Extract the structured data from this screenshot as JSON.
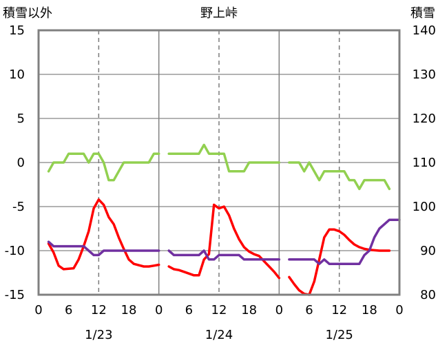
{
  "chart_data": {
    "type": "line",
    "title": "野上峠",
    "ylabel_left": "積雪以外",
    "ylabel_right": "積雪",
    "left_axis": {
      "min": -15,
      "max": 15,
      "step": 5
    },
    "right_axis": {
      "min": 80,
      "max": 140,
      "step": 10
    },
    "x_axis": {
      "hours_per_day": 24,
      "days": 3,
      "tick_labels": [
        "0",
        "6",
        "12",
        "18",
        "0",
        "6",
        "12",
        "18",
        "0",
        "6",
        "12",
        "18",
        "0"
      ]
    },
    "date_labels": [
      "1/23",
      "1/24",
      "1/25"
    ],
    "grid": {
      "horizontal": true,
      "vertical_dashed_at_hours": [
        12,
        36,
        60
      ],
      "day_separators": [
        24,
        48
      ]
    },
    "series": [
      {
        "key": "green",
        "axis": "left",
        "color": "#92d050",
        "days": [
          [
            [
              2,
              -1
            ],
            [
              3,
              0
            ],
            [
              5,
              0
            ],
            [
              6,
              1
            ],
            [
              9,
              1
            ],
            [
              10,
              0
            ],
            [
              11,
              1
            ],
            [
              12,
              1
            ],
            [
              13,
              0
            ],
            [
              14,
              -2
            ],
            [
              15,
              -2
            ],
            [
              16,
              -1
            ],
            [
              17,
              0
            ],
            [
              22,
              0
            ],
            [
              23,
              1
            ],
            [
              24,
              1
            ]
          ],
          [
            [
              26,
              1
            ],
            [
              32,
              1
            ],
            [
              33,
              2
            ],
            [
              34,
              1
            ],
            [
              37,
              1
            ],
            [
              38,
              -1
            ],
            [
              41,
              -1
            ],
            [
              42,
              0
            ],
            [
              48,
              0
            ]
          ],
          [
            [
              50,
              0
            ],
            [
              52,
              0
            ],
            [
              53,
              -1
            ],
            [
              54,
              0
            ],
            [
              56,
              -2
            ],
            [
              57,
              -1
            ],
            [
              61,
              -1
            ],
            [
              62,
              -2
            ],
            [
              63,
              -2
            ],
            [
              64,
              -3
            ],
            [
              65,
              -2
            ],
            [
              69,
              -2
            ],
            [
              70,
              -3
            ]
          ]
        ]
      },
      {
        "key": "red",
        "axis": "left",
        "color": "#ff0000",
        "days": [
          [
            [
              2,
              -9.2
            ],
            [
              3,
              -10.2
            ],
            [
              4,
              -11.7
            ],
            [
              5,
              -12.1
            ],
            [
              7,
              -12
            ],
            [
              8,
              -11
            ],
            [
              9,
              -9.5
            ],
            [
              10,
              -7.8
            ],
            [
              11,
              -5.2
            ],
            [
              12,
              -4.2
            ],
            [
              13,
              -4.8
            ],
            [
              14,
              -6.2
            ],
            [
              15,
              -7
            ],
            [
              16,
              -8.5
            ],
            [
              17,
              -9.8
            ],
            [
              18,
              -11
            ],
            [
              19,
              -11.5
            ],
            [
              21,
              -11.8
            ],
            [
              22,
              -11.8
            ],
            [
              23,
              -11.7
            ],
            [
              24,
              -11.6
            ]
          ],
          [
            [
              26,
              -11.8
            ],
            [
              27,
              -12.1
            ],
            [
              28,
              -12.2
            ],
            [
              29,
              -12.4
            ],
            [
              31,
              -12.8
            ],
            [
              32,
              -12.8
            ],
            [
              33,
              -11
            ],
            [
              34,
              -10.4
            ],
            [
              35,
              -4.8
            ],
            [
              36,
              -5.2
            ],
            [
              37,
              -5
            ],
            [
              38,
              -6
            ],
            [
              39,
              -7.5
            ],
            [
              40,
              -8.7
            ],
            [
              41,
              -9.6
            ],
            [
              42,
              -10.1
            ],
            [
              43,
              -10.4
            ],
            [
              44,
              -10.6
            ],
            [
              45,
              -11.2
            ],
            [
              46,
              -11.8
            ],
            [
              47,
              -12.4
            ],
            [
              48,
              -13.1
            ]
          ],
          [
            [
              50,
              -13
            ],
            [
              51,
              -13.8
            ],
            [
              52,
              -14.5
            ],
            [
              53,
              -14.9
            ],
            [
              54,
              -15
            ],
            [
              55,
              -13.5
            ],
            [
              56,
              -11
            ],
            [
              57,
              -8.5
            ],
            [
              58,
              -7.6
            ],
            [
              59,
              -7.6
            ],
            [
              60,
              -7.8
            ],
            [
              61,
              -8.2
            ],
            [
              62,
              -8.8
            ],
            [
              63,
              -9.3
            ],
            [
              64,
              -9.6
            ],
            [
              65,
              -9.8
            ],
            [
              66,
              -9.9
            ],
            [
              68,
              -10
            ],
            [
              70,
              -10
            ]
          ]
        ]
      },
      {
        "key": "purple",
        "axis": "right",
        "color": "#7030a0",
        "days": [
          [
            [
              2,
              92
            ],
            [
              3,
              91
            ],
            [
              9,
              91
            ],
            [
              10,
              90
            ],
            [
              11,
              89
            ],
            [
              12,
              89
            ],
            [
              13,
              90
            ],
            [
              24,
              90
            ]
          ],
          [
            [
              26,
              90
            ],
            [
              27,
              89
            ],
            [
              32,
              89
            ],
            [
              33,
              90
            ],
            [
              34,
              88
            ],
            [
              35,
              88
            ],
            [
              36,
              89
            ],
            [
              40,
              89
            ],
            [
              41,
              88
            ],
            [
              48,
              88
            ]
          ],
          [
            [
              50,
              88
            ],
            [
              55,
              88
            ],
            [
              56,
              87
            ],
            [
              57,
              88
            ],
            [
              58,
              87
            ],
            [
              64,
              87
            ],
            [
              65,
              89
            ],
            [
              66,
              90
            ],
            [
              67,
              93
            ],
            [
              68,
              95
            ],
            [
              69,
              96
            ],
            [
              70,
              97
            ],
            [
              72,
              97
            ]
          ]
        ]
      }
    ]
  }
}
